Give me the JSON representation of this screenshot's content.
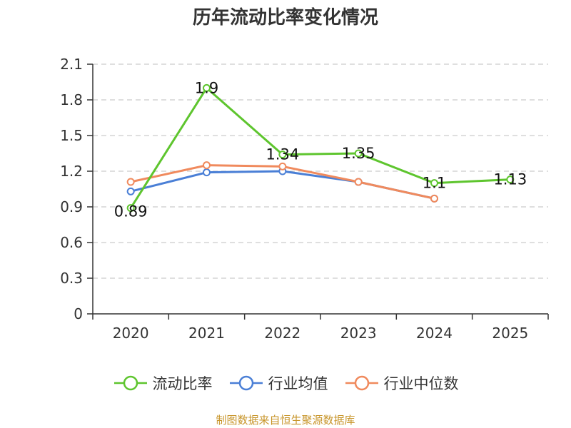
{
  "chart_data": {
    "type": "line",
    "title": "历年流动比率变化情况",
    "xlabel": "",
    "ylabel": "",
    "categories": [
      "2020",
      "2021",
      "2022",
      "2023",
      "2024",
      "2025"
    ],
    "ylim": [
      0,
      2.1
    ],
    "yticks": [
      "0",
      "0.3",
      "0.6",
      "0.9",
      "1.2",
      "1.5",
      "1.8",
      "2.1"
    ],
    "grid": true,
    "legend_position": "bottom",
    "series": [
      {
        "name": "流动比率",
        "color": "#5ec52e",
        "values": [
          0.89,
          1.9,
          1.34,
          1.35,
          1.1,
          1.13
        ],
        "labels": [
          "0.89",
          "1.9",
          "1.34",
          "1.35",
          "1.1",
          "1.13"
        ]
      },
      {
        "name": "行业均值",
        "color": "#4a7fd6",
        "values": [
          1.03,
          1.19,
          1.2,
          1.11,
          0.97,
          null
        ]
      },
      {
        "name": "行业中位数",
        "color": "#f08a5d",
        "values": [
          1.11,
          1.25,
          1.24,
          1.11,
          0.97,
          null
        ]
      }
    ]
  },
  "source": "制图数据来自恒生聚源数据库"
}
